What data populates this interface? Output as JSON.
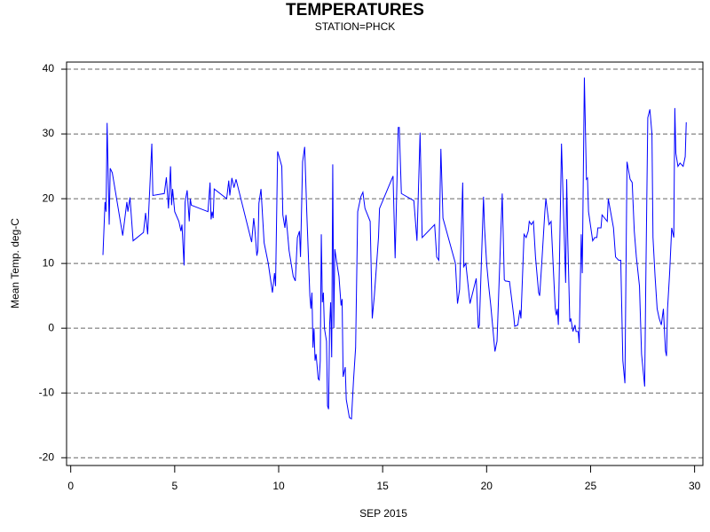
{
  "chart_data": {
    "type": "line",
    "title": "TEMPERATURES",
    "subtitle": "STATION=PHCK",
    "x_label": "SEP 2015",
    "y_label": "Mean Temp. deg-C",
    "xlim": [
      -0.2,
      30.4
    ],
    "ylim": [
      -21.2,
      41.1
    ],
    "xticks": [
      0,
      5,
      10,
      15,
      20,
      25,
      30
    ],
    "yticks": [
      -20,
      -10,
      0,
      10,
      20,
      30,
      40
    ],
    "grid": true,
    "series": [
      {
        "color": "#0000ff",
        "x": [
          1.55,
          1.65,
          1.7,
          1.75,
          1.85,
          1.9,
          2.0,
          2.5,
          2.7,
          2.75,
          2.85,
          3.0,
          3.5,
          3.6,
          3.7,
          3.9,
          3.95,
          4.5,
          4.6,
          4.7,
          4.8,
          4.85,
          4.9,
          5.0,
          5.2,
          5.3,
          5.35,
          5.45,
          5.5,
          5.6,
          5.7,
          5.75,
          5.8,
          6.6,
          6.7,
          6.75,
          6.8,
          6.85,
          6.9,
          7.5,
          7.6,
          7.65,
          7.75,
          7.85,
          7.95,
          8.7,
          8.8,
          8.85,
          8.95,
          9.0,
          9.05,
          9.15,
          9.3,
          9.5,
          9.7,
          9.8,
          9.85,
          9.95,
          10.15,
          10.2,
          10.3,
          10.35,
          10.5,
          10.7,
          10.8,
          10.9,
          11.0,
          11.05,
          11.15,
          11.25,
          11.35,
          11.5,
          11.55,
          11.6,
          11.65,
          11.7,
          11.75,
          11.8,
          11.9,
          11.95,
          12.0,
          12.05,
          12.1,
          12.15,
          12.2,
          12.3,
          12.35,
          12.4,
          12.45,
          12.5,
          12.55,
          12.6,
          12.65,
          12.7,
          12.8,
          12.9,
          13.0,
          13.05,
          13.1,
          13.2,
          13.25,
          13.4,
          13.5,
          13.6,
          13.7,
          13.8,
          13.95,
          14.05,
          14.15,
          14.4,
          14.5,
          14.6,
          14.8,
          14.85,
          15.5,
          15.6,
          15.75,
          15.8,
          15.9,
          16.5,
          16.65,
          16.8,
          16.9,
          17.5,
          17.6,
          17.7,
          17.8,
          17.9,
          18.5,
          18.6,
          18.7,
          18.85,
          18.9,
          19.0,
          19.2,
          19.5,
          19.6,
          19.65,
          19.85,
          19.9,
          20.0,
          20.1,
          20.2,
          20.4,
          20.5,
          20.75,
          20.85,
          20.9,
          21.1,
          21.3,
          21.35,
          21.5,
          21.6,
          21.65,
          21.8,
          21.9,
          22.0,
          22.05,
          22.15,
          22.25,
          22.35,
          22.5,
          22.55,
          22.65,
          22.8,
          22.85,
          23.0,
          23.1,
          23.3,
          23.35,
          23.4,
          23.45,
          23.6,
          23.8,
          23.85,
          23.9,
          24.0,
          24.05,
          24.15,
          24.25,
          24.3,
          24.4,
          24.45,
          24.55,
          24.6,
          24.7,
          24.8,
          24.85,
          24.9,
          25.1,
          25.2,
          25.3,
          25.35,
          25.5,
          25.55,
          25.8,
          25.85,
          26.1,
          26.2,
          26.35,
          26.45,
          26.55,
          26.65,
          26.75,
          26.9,
          27.0,
          27.1,
          27.2,
          27.35,
          27.45,
          27.6,
          27.65,
          27.75,
          27.85,
          27.95,
          28.0,
          28.1,
          28.2,
          28.3,
          28.4,
          28.5,
          28.6,
          28.65,
          28.7,
          28.8,
          28.9,
          29.0,
          29.05,
          29.1,
          29.2,
          29.3,
          29.45,
          29.55,
          29.6
        ],
        "values": [
          11.3,
          19.5,
          18,
          31.7,
          16,
          24.7,
          24,
          14.3,
          19.5,
          18,
          20.2,
          13.5,
          14.8,
          17.8,
          14.5,
          28.5,
          20.5,
          20.8,
          23.3,
          18.5,
          25,
          19,
          21.5,
          18,
          16.5,
          15,
          16,
          9.7,
          19.5,
          21.3,
          16.5,
          20,
          19,
          18,
          22.5,
          16.8,
          18,
          17,
          21.5,
          20,
          22.8,
          20.5,
          23.2,
          21.7,
          23,
          13.3,
          17,
          15.5,
          11.2,
          12,
          19.3,
          21.5,
          13.2,
          10,
          5.5,
          8.5,
          6.5,
          27.3,
          25,
          17.5,
          15.5,
          17.5,
          12,
          8,
          7.3,
          14,
          15,
          11,
          25.7,
          28,
          18,
          5,
          3,
          5.5,
          -3,
          0,
          -5,
          -4,
          -7.8,
          -8,
          -5,
          14.5,
          4,
          5.5,
          0,
          -2,
          -12,
          -12.5,
          0.5,
          4,
          -4.5,
          25.3,
          0,
          12.2,
          10,
          8,
          3.5,
          4.5,
          -7.5,
          -6,
          -11,
          -13.8,
          -14,
          -8,
          -3,
          18,
          20.3,
          21,
          18.5,
          16.5,
          1.5,
          5,
          14,
          18.5,
          23.5,
          10.8,
          31,
          31,
          20.8,
          19.7,
          13.5,
          30.2,
          14,
          16,
          11,
          10.5,
          27.7,
          17,
          10,
          3.8,
          6,
          22.5,
          9.5,
          10,
          3.8,
          7.7,
          0,
          0.5,
          20.3,
          15.5,
          10,
          6.5,
          3.5,
          -3.6,
          -2,
          20.8,
          7.5,
          7.3,
          7.2,
          2,
          0.3,
          0.5,
          2.8,
          1.5,
          14.5,
          14,
          15,
          16.5,
          16,
          16.5,
          11,
          5.5,
          5,
          10,
          18,
          20,
          16,
          16.5,
          3,
          2,
          3,
          0.5,
          28.5,
          7,
          23,
          14,
          1,
          1.5,
          -0.5,
          0.5,
          -0.5,
          -0.5,
          -2.3,
          14.5,
          8.5,
          38.7,
          23,
          23.2,
          18,
          13.5,
          14,
          14,
          15.5,
          15.5,
          17.5,
          16.5,
          20,
          15.5,
          11,
          10.5,
          10.5,
          -5,
          -8.5,
          25.7,
          23,
          22.5,
          15,
          11,
          6.5,
          -4,
          -9,
          6,
          32.5,
          33.8,
          30,
          14,
          8,
          3,
          1.5,
          0.5,
          3,
          -3.5,
          -4.3,
          3,
          8.5,
          15.5,
          14,
          34,
          27,
          25,
          25.5,
          25,
          26.5,
          31.8
        ]
      }
    ]
  }
}
